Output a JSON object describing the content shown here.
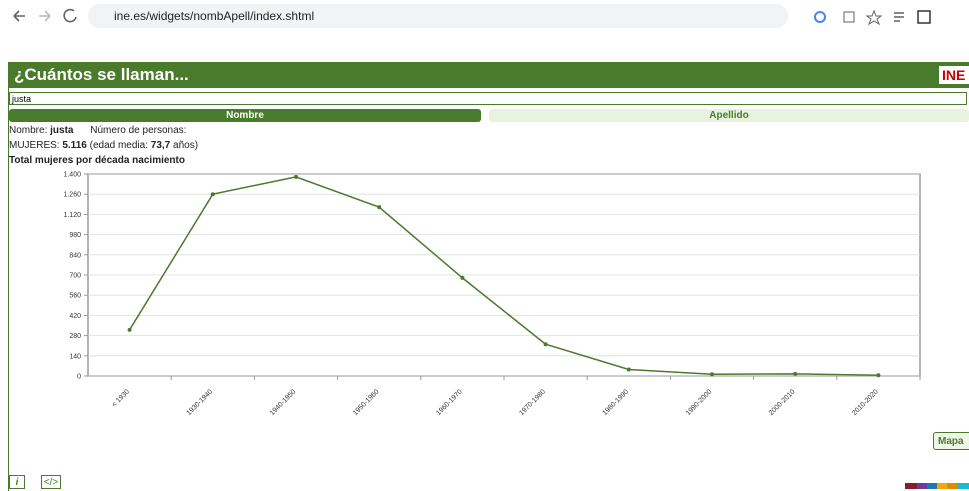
{
  "browser": {
    "url": "ine.es/widgets/nombApell/index.shtml"
  },
  "widget": {
    "title": "¿Cuántos se llaman...",
    "logo": "INE",
    "search": "justa",
    "tabs": [
      "Nombre",
      "Apellido"
    ],
    "name_label": "Nombre:",
    "name": "justa",
    "count_label": "Número de personas:",
    "group_label": "MUJERES:",
    "group_count": "5.116",
    "age_label": "(edad media:",
    "age": "73,7",
    "age_unit": "años)",
    "map_button": "Mapa",
    "info_icon": "i",
    "embed_icon": "</>"
  },
  "chart_data": {
    "type": "line",
    "title": "Total mujeres por década nacimiento",
    "categories": [
      "< 1930",
      "1930-1940",
      "1940-1950",
      "1950-1960",
      "1960-1970",
      "1970-1980",
      "1980-1990",
      "1990-2000",
      "2000-2010",
      "2010-2020"
    ],
    "series": [
      {
        "name": "Total mujeres",
        "color": "#4a7a2c",
        "values": [
          320,
          1260,
          1380,
          1170,
          680,
          220,
          45,
          12,
          15,
          5
        ]
      }
    ],
    "ylim": [
      0,
      1400
    ],
    "yticks": [
      0,
      140,
      280,
      420,
      560,
      700,
      840,
      980,
      {
        "value": 1120,
        "label": "1.120"
      },
      {
        "value": 1260,
        "label": "1.260"
      },
      {
        "value": 1400,
        "label": "1.400"
      }
    ],
    "grid": true
  }
}
